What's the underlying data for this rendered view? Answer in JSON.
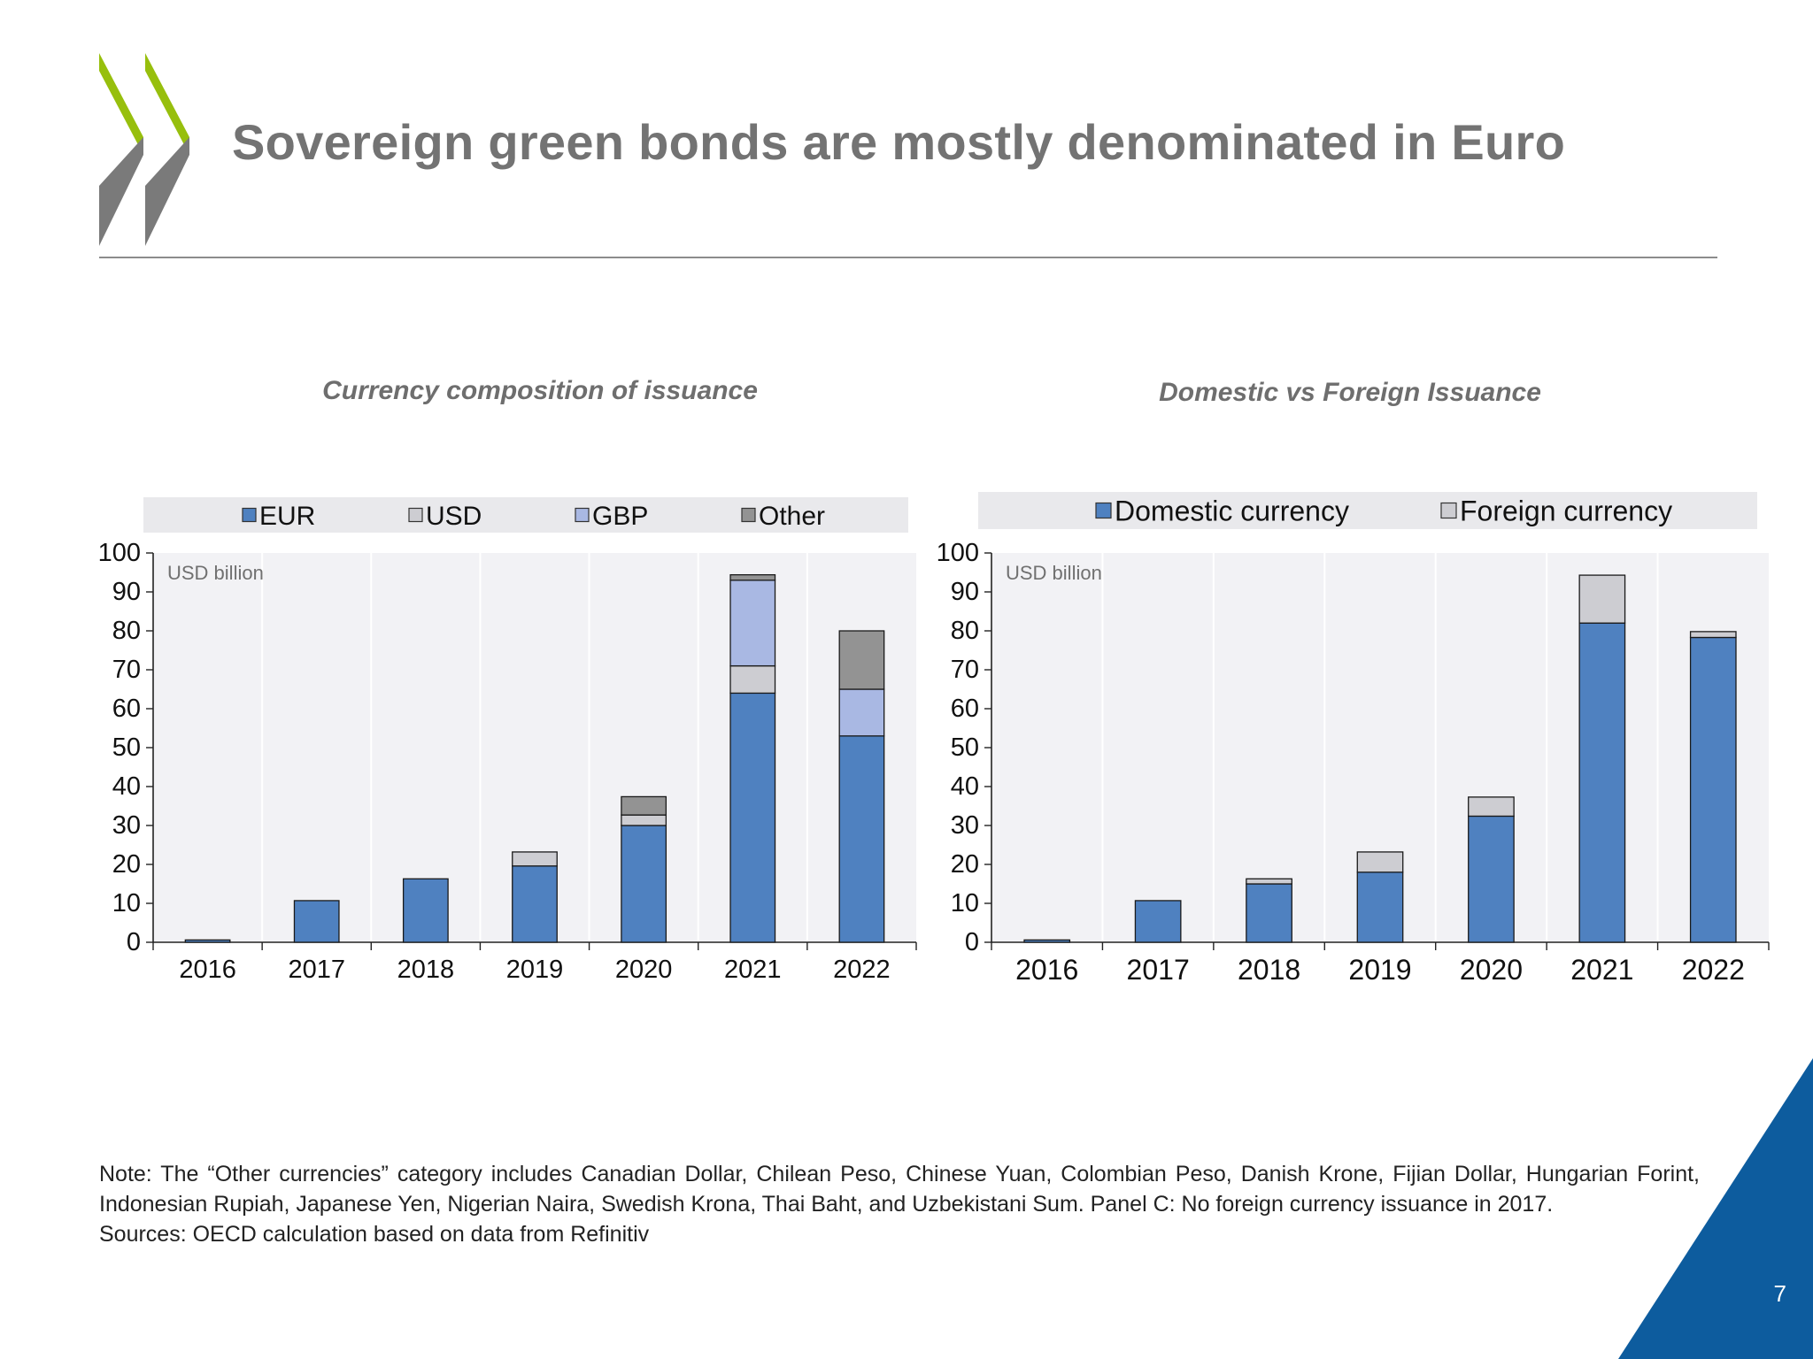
{
  "slide": {
    "title": "Sovereign green bonds are mostly denominated in Euro",
    "note_line1": "Note: The “Other currencies” category includes Canadian Dollar, Chilean Peso, Chinese Yuan, Colombian Peso, Danish Krone, Fijian Dollar, Hungarian Forint, Indonesian Rupiah, Japanese Yen, Nigerian Naira, Swedish Krona, Thai Baht, and Uzbekistani Sum. Panel C: No foreign currency issuance in 2017.",
    "note_line2": "Sources: OECD calculation based on data from Refinitiv",
    "page_number": "7",
    "colors": {
      "title": "#737373",
      "logo_green": "#97bf0d",
      "logo_gray": "#7a7a7a",
      "corner_blue": "#0d5c9e",
      "plot_bg": "#f2f2f5",
      "legend_bg": "#e9e9ec"
    }
  },
  "chart_data": [
    {
      "type": "bar",
      "stacked": true,
      "title": "Currency composition of issuance",
      "unit_label": "USD billion",
      "categories": [
        "2016",
        "2017",
        "2018",
        "2019",
        "2020",
        "2021",
        "2022"
      ],
      "ylim": [
        0,
        100
      ],
      "yticks": [
        0,
        10,
        20,
        30,
        40,
        50,
        60,
        70,
        80,
        90,
        100
      ],
      "grid": "vertical",
      "legend_position": "top",
      "series": [
        {
          "name": "EUR",
          "color": "#4f81c0",
          "values": [
            0.6,
            10.7,
            16.3,
            19.6,
            30.0,
            64.0,
            53.0
          ]
        },
        {
          "name": "USD",
          "color": "#cdcdd2",
          "values": [
            0,
            0,
            0,
            3.6,
            2.7,
            7.0,
            0
          ]
        },
        {
          "name": "GBP",
          "color": "#a9b8e3",
          "values": [
            0,
            0,
            0,
            0,
            0,
            22.0,
            12.0
          ]
        },
        {
          "name": "Other",
          "color": "#939393",
          "values": [
            0,
            0,
            0,
            0,
            4.7,
            1.4,
            15.0
          ]
        }
      ]
    },
    {
      "type": "bar",
      "stacked": true,
      "title": "Domestic vs Foreign Issuance",
      "unit_label": "USD billion",
      "categories": [
        "2016",
        "2017",
        "2018",
        "2019",
        "2020",
        "2021",
        "2022"
      ],
      "ylim": [
        0,
        100
      ],
      "yticks": [
        0,
        10,
        20,
        30,
        40,
        50,
        60,
        70,
        80,
        90,
        100
      ],
      "grid": "vertical",
      "legend_position": "top",
      "series": [
        {
          "name": "Domestic currency",
          "color": "#4f81c0",
          "values": [
            0.6,
            10.7,
            15.0,
            18.0,
            32.4,
            82.0,
            78.3
          ]
        },
        {
          "name": "Foreign currency",
          "color": "#cdcdd2",
          "values": [
            0,
            0,
            1.3,
            5.2,
            4.9,
            12.3,
            1.5
          ]
        }
      ]
    }
  ]
}
